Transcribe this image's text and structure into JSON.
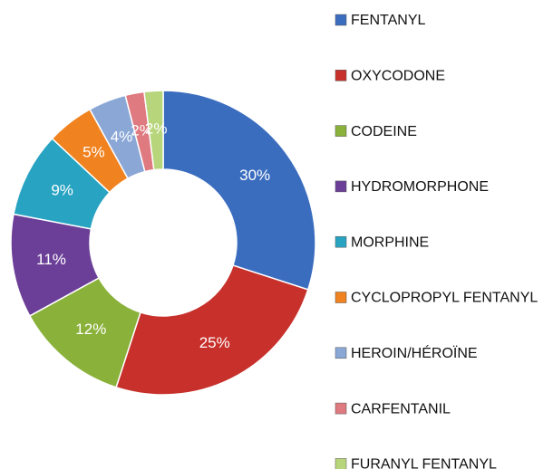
{
  "chart_data": {
    "type": "donut",
    "categories": [
      "FENTANYL",
      "OXYCODONE",
      "CODEINE",
      "HYDROMORPHONE",
      "MORPHINE",
      "CYCLOPROPYL FENTANYL",
      "HEROIN/HÉROÏNE",
      "CARFENTANIL",
      "FURANYL FENTANYL"
    ],
    "values": [
      30,
      25,
      12,
      11,
      9,
      5,
      4,
      2,
      2
    ],
    "value_labels": [
      "30%",
      "25%",
      "12%",
      "11%",
      "9%",
      "5%",
      "4%",
      "2%",
      "2%"
    ],
    "colors": [
      "#3b6dbf",
      "#c7302b",
      "#8ab13a",
      "#6b3f98",
      "#28a3c2",
      "#f0821f",
      "#8aa7d6",
      "#de7a80",
      "#b7d57a"
    ],
    "legend": "right"
  }
}
